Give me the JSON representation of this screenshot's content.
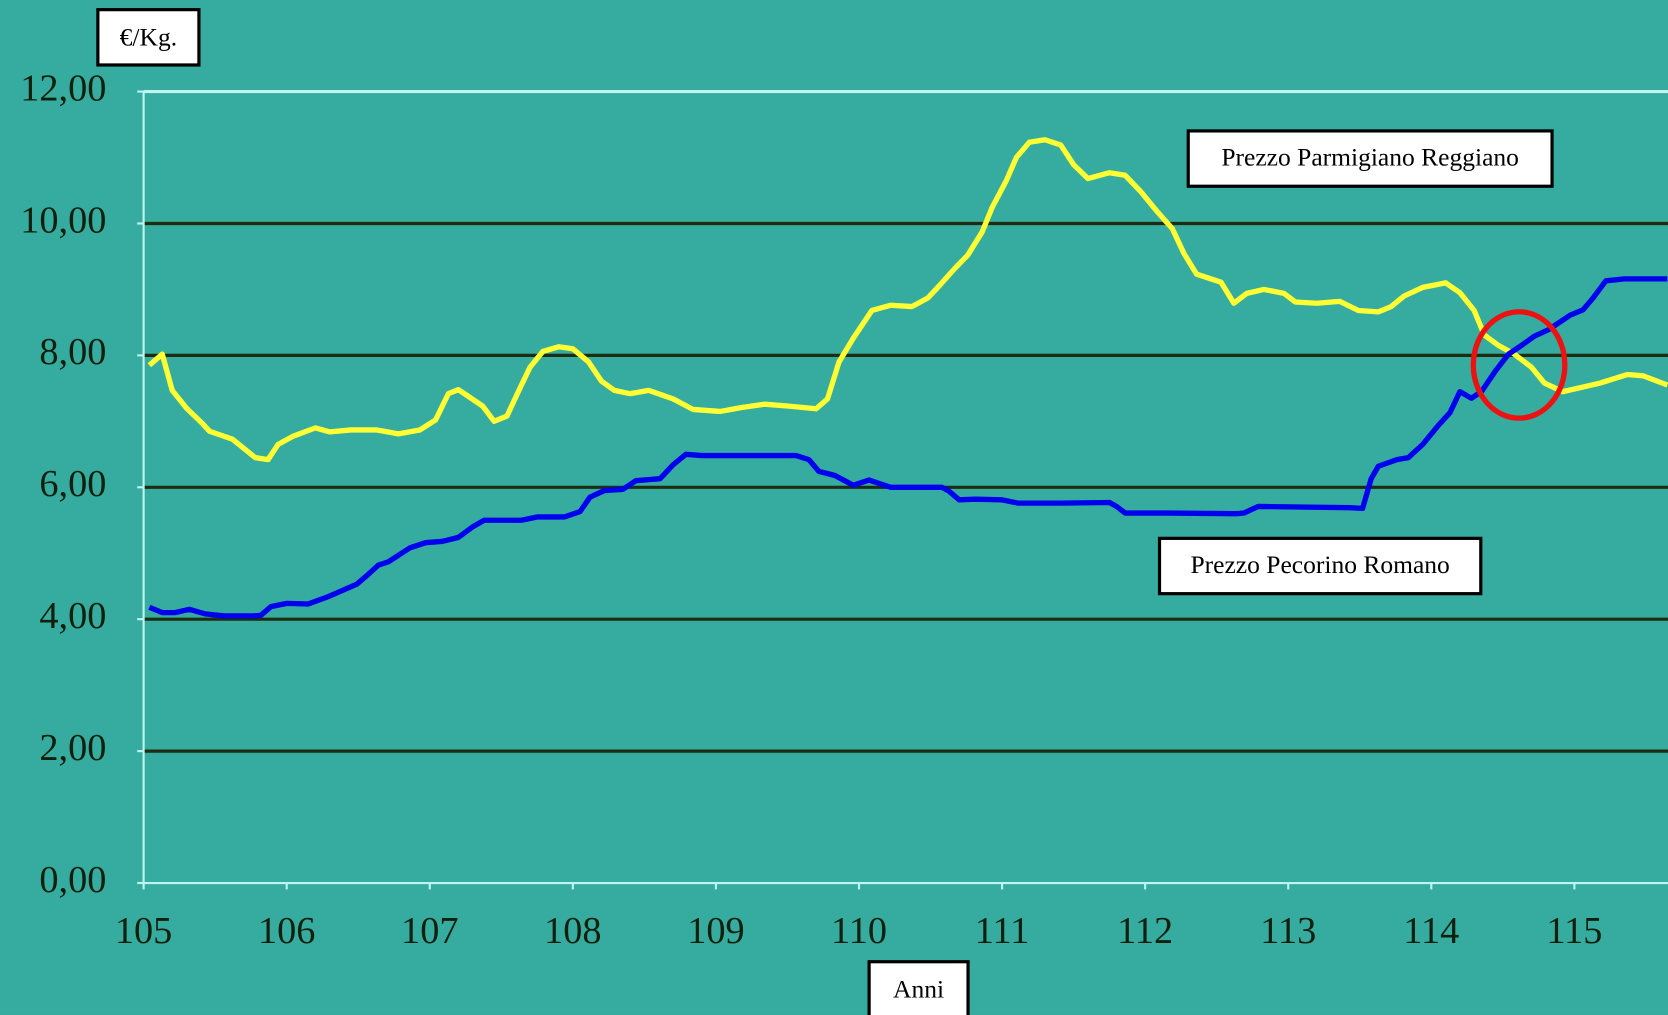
{
  "chart_data": {
    "type": "line",
    "ylabel": "€/Kg.",
    "xlabel": "Anni",
    "xlim": [
      105,
      115.65
    ],
    "xticks": [
      105,
      106,
      107,
      108,
      109,
      110,
      111,
      112,
      113,
      114,
      115
    ],
    "ylim": [
      0,
      12
    ],
    "yticks": [
      {
        "value": 0,
        "label": "0,00"
      },
      {
        "value": 2,
        "label": "2,00"
      },
      {
        "value": 4,
        "label": "4,00"
      },
      {
        "value": 6,
        "label": "6,00"
      },
      {
        "value": 8,
        "label": "8,00"
      },
      {
        "value": 10,
        "label": "10,00"
      },
      {
        "value": 12,
        "label": "12,00"
      }
    ],
    "grid": true,
    "series": [
      {
        "name": "Prezzo Parmigiano Reggiano",
        "color": "#ffff33",
        "x": [
          105.04,
          105.13,
          105.2,
          105.3,
          105.41,
          105.46,
          105.62,
          105.78,
          105.87,
          105.94,
          106.04,
          106.2,
          106.3,
          106.45,
          106.63,
          106.78,
          106.93,
          107.04,
          107.13,
          107.2,
          107.37,
          107.45,
          107.54,
          107.63,
          107.7,
          107.79,
          107.9,
          108.0,
          108.11,
          108.2,
          108.29,
          108.4,
          108.53,
          108.7,
          108.84,
          109.03,
          109.18,
          109.34,
          109.51,
          109.7,
          109.78,
          109.86,
          109.96,
          110.09,
          110.22,
          110.37,
          110.48,
          110.55,
          110.67,
          110.76,
          110.86,
          110.93,
          111.03,
          111.1,
          111.19,
          111.3,
          111.41,
          111.5,
          111.6,
          111.75,
          111.86,
          111.97,
          112.08,
          112.19,
          112.27,
          112.36,
          112.53,
          112.62,
          112.71,
          112.83,
          112.97,
          113.05,
          113.2,
          113.36,
          113.49,
          113.63,
          113.72,
          113.81,
          113.94,
          114.1,
          114.2,
          114.3,
          114.37,
          114.47,
          114.58,
          114.7,
          114.79,
          114.92,
          115.06,
          115.18,
          115.37,
          115.48,
          115.65
        ],
        "values": [
          7.85,
          8.02,
          7.47,
          7.2,
          6.97,
          6.85,
          6.73,
          6.45,
          6.42,
          6.65,
          6.77,
          6.9,
          6.84,
          6.87,
          6.87,
          6.81,
          6.87,
          7.02,
          7.42,
          7.48,
          7.23,
          7.0,
          7.08,
          7.5,
          7.82,
          8.06,
          8.13,
          8.1,
          7.9,
          7.61,
          7.47,
          7.42,
          7.47,
          7.34,
          7.18,
          7.15,
          7.21,
          7.26,
          7.23,
          7.19,
          7.34,
          7.9,
          8.26,
          8.68,
          8.76,
          8.74,
          8.87,
          9.03,
          9.32,
          9.52,
          9.87,
          10.24,
          10.65,
          11.0,
          11.23,
          11.27,
          11.19,
          10.89,
          10.68,
          10.77,
          10.73,
          10.48,
          10.19,
          9.92,
          9.55,
          9.23,
          9.11,
          8.79,
          8.94,
          9.0,
          8.94,
          8.81,
          8.79,
          8.82,
          8.68,
          8.66,
          8.74,
          8.9,
          9.03,
          9.1,
          8.95,
          8.68,
          8.31,
          8.15,
          8.02,
          7.82,
          7.58,
          7.45,
          7.52,
          7.58,
          7.71,
          7.69,
          7.55
        ]
      },
      {
        "name": "Prezzo Pecorino Romano",
        "color": "#0000ee",
        "x": [
          105.04,
          105.13,
          105.22,
          105.32,
          105.43,
          105.56,
          105.77,
          105.82,
          105.89,
          106.0,
          106.15,
          106.3,
          106.49,
          106.56,
          106.64,
          106.71,
          106.86,
          106.97,
          107.09,
          107.2,
          107.3,
          107.38,
          107.49,
          107.64,
          107.75,
          107.94,
          108.05,
          108.12,
          108.22,
          108.35,
          108.44,
          108.61,
          108.7,
          108.79,
          108.9,
          109.2,
          109.56,
          109.65,
          109.72,
          109.83,
          109.96,
          110.07,
          110.14,
          110.22,
          110.58,
          110.63,
          110.7,
          110.81,
          111.0,
          111.11,
          111.41,
          111.75,
          111.8,
          111.86,
          111.93,
          112.16,
          112.64,
          112.69,
          112.79,
          113.43,
          113.52,
          113.58,
          113.63,
          113.76,
          113.84,
          113.94,
          114.05,
          114.13,
          114.2,
          114.28,
          114.35,
          114.45,
          114.54,
          114.63,
          114.72,
          114.82,
          114.97,
          115.06,
          115.13,
          115.22,
          115.35,
          115.65
        ],
        "values": [
          4.18,
          4.1,
          4.1,
          4.15,
          4.08,
          4.05,
          4.05,
          4.06,
          4.19,
          4.24,
          4.23,
          4.35,
          4.53,
          4.66,
          4.82,
          4.87,
          5.08,
          5.16,
          5.18,
          5.24,
          5.4,
          5.5,
          5.5,
          5.5,
          5.55,
          5.55,
          5.63,
          5.85,
          5.95,
          5.97,
          6.1,
          6.13,
          6.34,
          6.5,
          6.48,
          6.48,
          6.48,
          6.42,
          6.24,
          6.18,
          6.03,
          6.11,
          6.06,
          6.0,
          6.0,
          5.94,
          5.81,
          5.82,
          5.81,
          5.76,
          5.76,
          5.77,
          5.71,
          5.61,
          5.61,
          5.61,
          5.6,
          5.61,
          5.71,
          5.69,
          5.68,
          6.13,
          6.32,
          6.42,
          6.45,
          6.65,
          6.94,
          7.13,
          7.45,
          7.35,
          7.45,
          7.77,
          8.02,
          8.15,
          8.29,
          8.39,
          8.61,
          8.69,
          8.87,
          9.13,
          9.16,
          9.16
        ]
      }
    ]
  }
}
